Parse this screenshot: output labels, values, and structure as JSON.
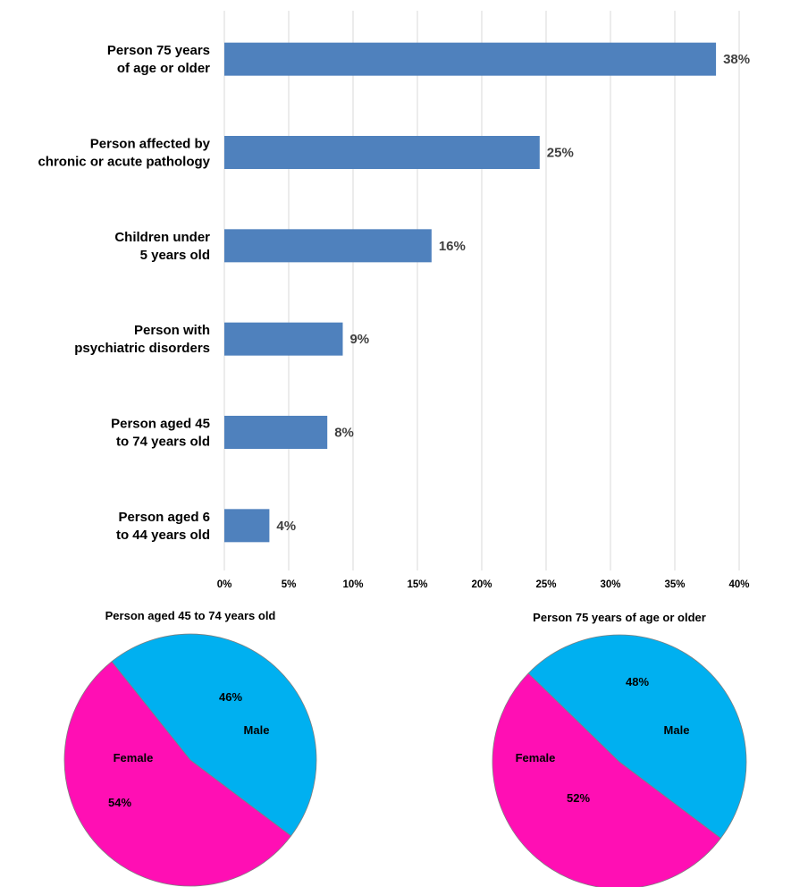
{
  "chart_data": [
    {
      "type": "bar",
      "orientation": "horizontal",
      "categories": [
        [
          "Person 75 years",
          "of age or older"
        ],
        [
          "Person affected by",
          "chronic or acute pathology"
        ],
        [
          "Children under",
          "5 years old"
        ],
        [
          "Person with",
          "psychiatric disorders"
        ],
        [
          "Person aged 45",
          "to 74 years old"
        ],
        [
          "Person aged 6",
          "to 44 years old"
        ]
      ],
      "values": [
        38.2,
        24.5,
        16.1,
        9.2,
        8.0,
        3.5
      ],
      "data_labels": [
        "38%",
        "25%",
        "16%",
        "9%",
        "8%",
        "4%"
      ],
      "xlim": [
        0,
        40
      ],
      "xticks": [
        0,
        5,
        10,
        15,
        20,
        25,
        30,
        35,
        40
      ],
      "xtick_labels": [
        "0%",
        "5%",
        "10%",
        "15%",
        "20%",
        "25%",
        "30%",
        "35%",
        "40%"
      ],
      "grid": "vertical",
      "bar_color": "#4f81bd",
      "title": "",
      "xlabel": "",
      "ylabel": ""
    },
    {
      "type": "pie",
      "title": "Person aged 45 to 74 years old",
      "slices": [
        {
          "name": "Male",
          "value": 46,
          "label": "46%",
          "color": "#00b0f0"
        },
        {
          "name": "Female",
          "value": 54,
          "label": "54%",
          "color": "#ff0fb4"
        }
      ]
    },
    {
      "type": "pie",
      "title": "Person 75 years of age or older",
      "slices": [
        {
          "name": "Male",
          "value": 48,
          "label": "48%",
          "color": "#00b0f0"
        },
        {
          "name": "Female",
          "value": 52,
          "label": "52%",
          "color": "#ff0fb4"
        }
      ]
    }
  ]
}
